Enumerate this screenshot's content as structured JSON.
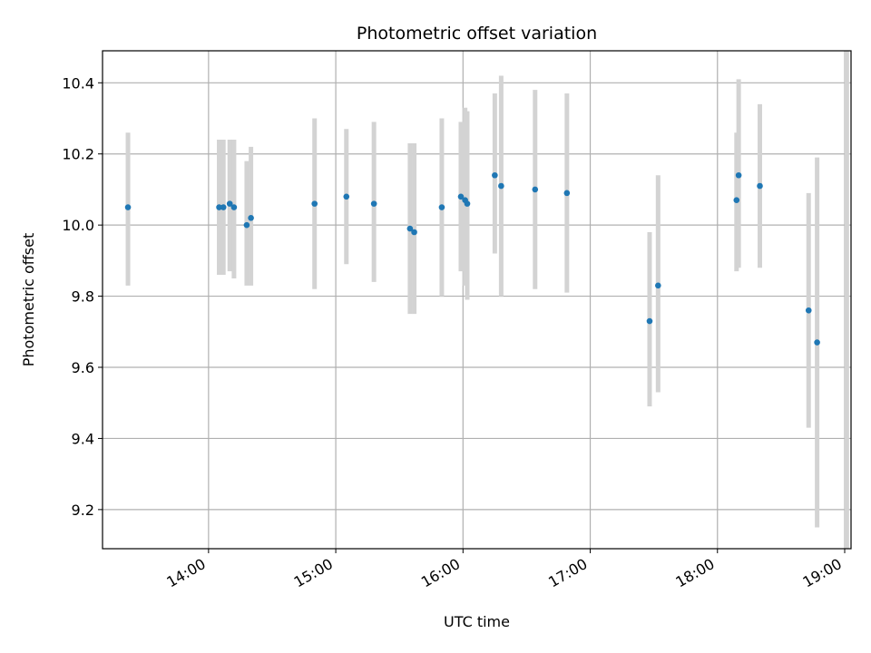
{
  "chart_data": {
    "type": "scatter",
    "title": "Photometric offset variation",
    "xlabel": "UTC time",
    "ylabel": "Photometric offset",
    "x_axis_type": "time",
    "xlim": [
      "13:10",
      "19:03"
    ],
    "ylim": [
      9.09,
      10.49
    ],
    "x_ticks": [
      "14:00",
      "15:00",
      "16:00",
      "17:00",
      "18:00",
      "19:00"
    ],
    "y_ticks": [
      9.2,
      9.4,
      9.6,
      9.8,
      10.0,
      10.2,
      10.4
    ],
    "y_tick_labels": [
      "9.2",
      "9.4",
      "9.6",
      "9.8",
      "10.0",
      "10.2",
      "10.4"
    ],
    "grid": true,
    "legend": "none",
    "colors": {
      "point": "#1f77b4",
      "errorbar": "#d3d3d3",
      "grid": "#b0b0b0"
    },
    "points": [
      {
        "x": "13:22",
        "y": 10.05,
        "y_low": 9.83,
        "y_high": 10.26
      },
      {
        "x": "14:05",
        "y": 10.05,
        "y_low": 9.86,
        "y_high": 10.24
      },
      {
        "x": "14:07",
        "y": 10.05,
        "y_low": 9.86,
        "y_high": 10.24
      },
      {
        "x": "14:10",
        "y": 10.06,
        "y_low": 9.87,
        "y_high": 10.24
      },
      {
        "x": "14:12",
        "y": 10.05,
        "y_low": 9.85,
        "y_high": 10.24
      },
      {
        "x": "14:18",
        "y": 10.0,
        "y_low": 9.83,
        "y_high": 10.18
      },
      {
        "x": "14:20",
        "y": 10.02,
        "y_low": 9.83,
        "y_high": 10.22
      },
      {
        "x": "14:50",
        "y": 10.06,
        "y_low": 9.82,
        "y_high": 10.3
      },
      {
        "x": "15:05",
        "y": 10.08,
        "y_low": 9.89,
        "y_high": 10.27
      },
      {
        "x": "15:18",
        "y": 10.06,
        "y_low": 9.84,
        "y_high": 10.29
      },
      {
        "x": "15:35",
        "y": 9.99,
        "y_low": 9.75,
        "y_high": 10.23
      },
      {
        "x": "15:37",
        "y": 9.98,
        "y_low": 9.75,
        "y_high": 10.23
      },
      {
        "x": "15:50",
        "y": 10.05,
        "y_low": 9.8,
        "y_high": 10.3
      },
      {
        "x": "15:59",
        "y": 10.08,
        "y_low": 9.87,
        "y_high": 10.29
      },
      {
        "x": "16:01",
        "y": 10.07,
        "y_low": 9.83,
        "y_high": 10.33
      },
      {
        "x": "16:02",
        "y": 10.06,
        "y_low": 9.79,
        "y_high": 10.32
      },
      {
        "x": "16:15",
        "y": 10.14,
        "y_low": 9.92,
        "y_high": 10.37
      },
      {
        "x": "16:18",
        "y": 10.11,
        "y_low": 9.8,
        "y_high": 10.42
      },
      {
        "x": "16:34",
        "y": 10.1,
        "y_low": 9.82,
        "y_high": 10.38
      },
      {
        "x": "16:49",
        "y": 10.09,
        "y_low": 9.81,
        "y_high": 10.37
      },
      {
        "x": "17:28",
        "y": 9.73,
        "y_low": 9.49,
        "y_high": 9.98
      },
      {
        "x": "17:32",
        "y": 9.83,
        "y_low": 9.53,
        "y_high": 10.14
      },
      {
        "x": "18:09",
        "y": 10.07,
        "y_low": 9.87,
        "y_high": 10.26
      },
      {
        "x": "18:10",
        "y": 10.14,
        "y_low": 9.88,
        "y_high": 10.41
      },
      {
        "x": "18:20",
        "y": 10.11,
        "y_low": 9.88,
        "y_high": 10.34
      },
      {
        "x": "18:43",
        "y": 9.76,
        "y_low": 9.43,
        "y_high": 10.09
      },
      {
        "x": "18:47",
        "y": 9.67,
        "y_low": 9.15,
        "y_high": 10.19
      },
      {
        "x": "19:01",
        "y": null,
        "y_low": 9.09,
        "y_high": 10.49
      }
    ]
  }
}
